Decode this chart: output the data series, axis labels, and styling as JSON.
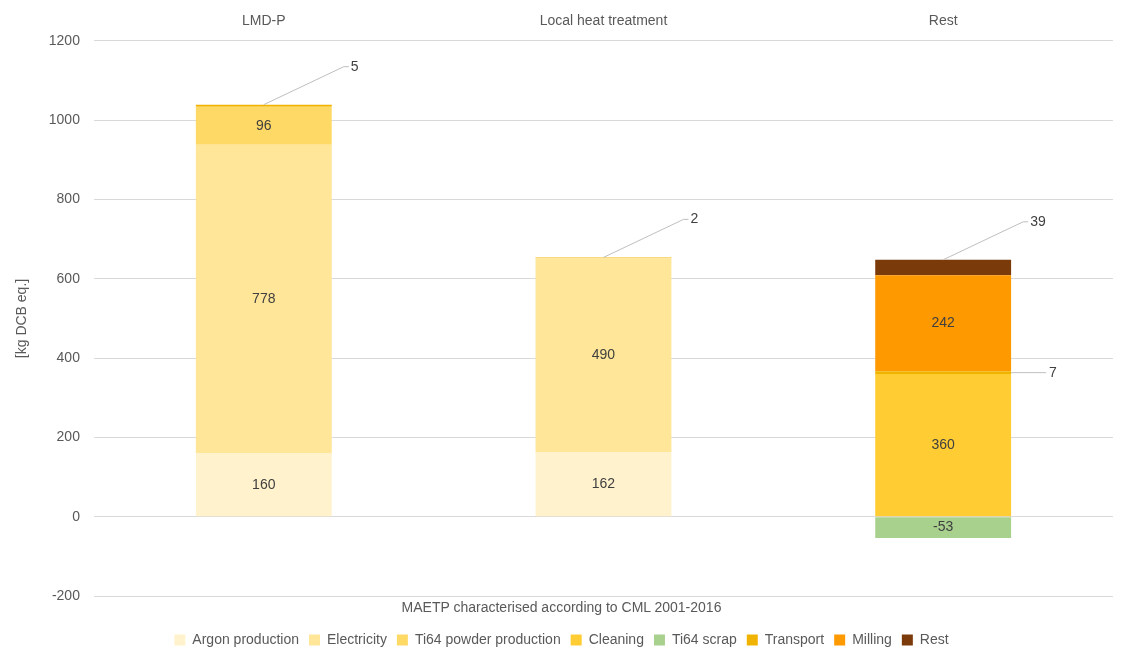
{
  "chart_data": {
    "type": "bar",
    "stacked": true,
    "xlabel": "MAETP characterised according to CML 2001-2016",
    "ylabel": "[kg DCB eq.]",
    "categories": [
      "LMD-P",
      "Local heat treatment",
      "Rest"
    ],
    "series": [
      {
        "name": "Argon production",
        "color": "#fff2cc",
        "values": [
          160,
          162,
          null
        ]
      },
      {
        "name": "Electricity",
        "color": "#ffe699",
        "values": [
          778,
          490,
          null
        ]
      },
      {
        "name": "Ti64 powder production",
        "color": "#ffd966",
        "values": [
          96,
          null,
          null
        ]
      },
      {
        "name": "Cleaning",
        "color": "#ffcc33",
        "values": [
          null,
          null,
          360
        ]
      },
      {
        "name": "Ti64 scrap",
        "color": "#a9d18e",
        "values": [
          null,
          null,
          -53
        ]
      },
      {
        "name": "Transport",
        "color": "#f0b400",
        "values": [
          5,
          2,
          7
        ]
      },
      {
        "name": "Milling",
        "color": "#ff9900",
        "values": [
          null,
          null,
          242
        ]
      },
      {
        "name": "Rest",
        "color": "#7b3a0a",
        "values": [
          null,
          null,
          39
        ]
      }
    ],
    "ylim": [
      -200,
      1200
    ],
    "yticks": [
      -200,
      0,
      200,
      400,
      600,
      800,
      1000,
      1200
    ],
    "grid": "y",
    "legend": "bottom",
    "data_labels": true
  }
}
